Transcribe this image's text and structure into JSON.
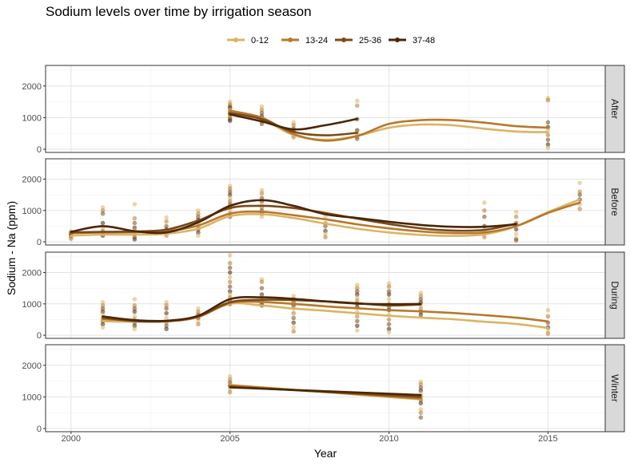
{
  "chart_data": {
    "type": "scatter",
    "title": "Sodium levels over time by irrigation season",
    "xlabel": "Year",
    "ylabel": "Sodium - Na (ppm)",
    "xlim": [
      1999.2,
      2016.8
    ],
    "ylim": [
      -100,
      2650
    ],
    "x_ticks": [
      2000,
      2005,
      2010,
      2015
    ],
    "y_ticks": [
      0,
      1000,
      2000
    ],
    "legend_position": "top",
    "grid": true,
    "series_colors": {
      "0-12": "#dbb463",
      "13-24": "#b8782a",
      "25-36": "#7a4a18",
      "37-48": "#4a2608"
    },
    "legend": [
      {
        "name": "0-12",
        "color": "#dbb463"
      },
      {
        "name": "13-24",
        "color": "#b8782a"
      },
      {
        "name": "25-36",
        "color": "#7a4a18"
      },
      {
        "name": "37-48",
        "color": "#4a2608"
      }
    ],
    "facets": [
      {
        "label": "After",
        "curves": [
          {
            "series": "0-12",
            "x": [
              2005,
              2006,
              2007,
              2008,
              2009,
              2010,
              2011,
              2012,
              2013,
              2014,
              2015
            ],
            "y": [
              1200,
              950,
              450,
              300,
              420,
              680,
              780,
              760,
              650,
              560,
              540
            ]
          },
          {
            "series": "13-24",
            "x": [
              2005,
              2006,
              2007,
              2008,
              2009,
              2010,
              2011,
              2012,
              2013,
              2014,
              2015
            ],
            "y": [
              1220,
              1000,
              480,
              270,
              420,
              800,
              920,
              920,
              840,
              730,
              680
            ]
          },
          {
            "series": "25-36",
            "x": [
              2005,
              2006,
              2007,
              2008,
              2009
            ],
            "y": [
              1150,
              950,
              550,
              440,
              520
            ]
          },
          {
            "series": "37-48",
            "x": [
              2005,
              2006,
              2007,
              2008,
              2009
            ],
            "y": [
              1100,
              880,
              630,
              760,
              960
            ]
          }
        ],
        "points": [
          {
            "x": 2005,
            "y": [
              1500,
              1420,
              1350,
              1300,
              1250,
              1200,
              1150,
              1100,
              1050,
              1000,
              950,
              900
            ]
          },
          {
            "x": 2006,
            "y": [
              1350,
              1250,
              1150,
              1050,
              950,
              880,
              800
            ]
          },
          {
            "x": 2007,
            "y": [
              850,
              760,
              650,
              550,
              450,
              380
            ]
          },
          {
            "x": 2009,
            "y": [
              1530,
              1380,
              950,
              600,
              500,
              400,
              330
            ]
          },
          {
            "x": 2015,
            "y": [
              1620,
              1550,
              850,
              700,
              600,
              450,
              300,
              150,
              50
            ]
          }
        ]
      },
      {
        "label": "Before",
        "curves": [
          {
            "series": "0-12",
            "x": [
              2000,
              2001,
              2002,
              2003,
              2004,
              2005,
              2006,
              2007,
              2008,
              2009,
              2010,
              2011,
              2012,
              2013,
              2014,
              2015,
              2016
            ],
            "y": [
              200,
              230,
              230,
              260,
              420,
              820,
              880,
              760,
              580,
              420,
              300,
              220,
              190,
              240,
              500,
              950,
              1350
            ]
          },
          {
            "series": "13-24",
            "x": [
              2000,
              2001,
              2002,
              2003,
              2004,
              2005,
              2006,
              2007,
              2008,
              2009,
              2010,
              2011,
              2012,
              2013,
              2014,
              2015,
              2016
            ],
            "y": [
              280,
              300,
              310,
              340,
              520,
              900,
              960,
              850,
              720,
              560,
              430,
              330,
              280,
              300,
              500,
              920,
              1250
            ]
          },
          {
            "series": "25-36",
            "x": [
              2000,
              2001,
              2002,
              2003,
              2004,
              2005,
              2006,
              2007,
              2008,
              2009,
              2010,
              2011,
              2012,
              2013,
              2014
            ],
            "y": [
              300,
              320,
              330,
              390,
              680,
              1080,
              1150,
              1080,
              920,
              740,
              570,
              430,
              360,
              380,
              580
            ]
          },
          {
            "series": "37-48",
            "x": [
              2000,
              2001,
              2002,
              2003,
              2004,
              2005,
              2006,
              2007,
              2008,
              2009,
              2010,
              2011,
              2012,
              2013,
              2014
            ],
            "y": [
              320,
              500,
              340,
              300,
              620,
              1150,
              1330,
              1150,
              880,
              760,
              640,
              540,
              480,
              480,
              560
            ]
          }
        ],
        "points": [
          {
            "x": 2000,
            "y": [
              340,
              300,
              250,
              200,
              150,
              100
            ]
          },
          {
            "x": 2001,
            "y": [
              1100,
              1000,
              900,
              600,
              450,
              350,
              300,
              200
            ]
          },
          {
            "x": 2002,
            "y": [
              1200,
              750,
              600,
              450,
              350,
              250,
              150,
              80
            ]
          },
          {
            "x": 2003,
            "y": [
              780,
              650,
              500,
              400,
              300,
              200
            ]
          },
          {
            "x": 2004,
            "y": [
              1000,
              900,
              800,
              700,
              600,
              500,
              400,
              300,
              200
            ]
          },
          {
            "x": 2005,
            "y": [
              1780,
              1700,
              1600,
              1500,
              1400,
              1300,
              1200,
              1100,
              1000,
              900,
              800
            ]
          },
          {
            "x": 2006,
            "y": [
              1650,
              1550,
              1400,
              1300,
              1200,
              1100,
              1000,
              900,
              800
            ]
          },
          {
            "x": 2008,
            "y": [
              800,
              600,
              500,
              350,
              250,
              150
            ]
          },
          {
            "x": 2013,
            "y": [
              1250,
              1000,
              800,
              500,
              300,
              150
            ]
          },
          {
            "x": 2014,
            "y": [
              950,
              800,
              600,
              400,
              250,
              100,
              50
            ]
          },
          {
            "x": 2016,
            "y": [
              1880,
              1600,
              1500,
              1350,
              1200,
              1050
            ]
          }
        ]
      },
      {
        "label": "During",
        "curves": [
          {
            "series": "0-12",
            "x": [
              2001,
              2002,
              2003,
              2004,
              2005,
              2006,
              2007,
              2008,
              2009,
              2010,
              2011,
              2012,
              2013,
              2014,
              2015
            ],
            "y": [
              450,
              430,
              460,
              600,
              1000,
              950,
              850,
              780,
              700,
              620,
              560,
              510,
              430,
              360,
              230
            ]
          },
          {
            "series": "13-24",
            "x": [
              2001,
              2002,
              2003,
              2004,
              2005,
              2006,
              2007,
              2008,
              2009,
              2010,
              2011,
              2012,
              2013,
              2014,
              2015
            ],
            "y": [
              520,
              460,
              440,
              580,
              1030,
              1060,
              1000,
              920,
              860,
              800,
              760,
              710,
              640,
              560,
              440
            ]
          },
          {
            "series": "25-36",
            "x": [
              2001,
              2002,
              2003,
              2004,
              2005,
              2006,
              2007,
              2008,
              2009,
              2010,
              2011
            ],
            "y": [
              560,
              450,
              450,
              600,
              1050,
              1130,
              1120,
              1080,
              1020,
              950,
              980
            ]
          },
          {
            "series": "37-48",
            "x": [
              2001,
              2002,
              2003,
              2004,
              2005,
              2006,
              2007,
              2008,
              2009,
              2010,
              2011
            ],
            "y": [
              600,
              480,
              460,
              620,
              1150,
              1210,
              1160,
              1080,
              1010,
              990,
              1000
            ]
          }
        ],
        "points": [
          {
            "x": 2001,
            "y": [
              1050,
              950,
              850,
              750,
              650,
              550,
              450,
              350,
              250
            ]
          },
          {
            "x": 2002,
            "y": [
              1150,
              950,
              850,
              750,
              600,
              500,
              400,
              300,
              200
            ]
          },
          {
            "x": 2003,
            "y": [
              1050,
              950,
              850,
              700,
              550,
              400,
              300,
              200
            ]
          },
          {
            "x": 2004,
            "y": [
              850,
              750,
              650,
              550,
              450,
              350
            ]
          },
          {
            "x": 2005,
            "y": [
              2550,
              2300,
              2150,
              2000,
              1850,
              1700,
              1550,
              1400,
              1300,
              1200,
              1100,
              1000
            ]
          },
          {
            "x": 2006,
            "y": [
              1780,
              1700,
              1500,
              1300,
              1200,
              1100,
              1000,
              950
            ]
          },
          {
            "x": 2007,
            "y": [
              1250,
              1150,
              1050,
              950,
              850,
              700,
              550,
              400,
              250,
              120
            ]
          },
          {
            "x": 2009,
            "y": [
              1600,
              1500,
              1400,
              1300,
              1200,
              1100,
              1000,
              900,
              750,
              600,
              450,
              300,
              150
            ]
          },
          {
            "x": 2010,
            "y": [
              1650,
              1550,
              1400,
              1300,
              1150,
              1000,
              900,
              800,
              650,
              500,
              350,
              200,
              100
            ]
          },
          {
            "x": 2011,
            "y": [
              1350,
              1250,
              1150,
              1050,
              950,
              850,
              750,
              650
            ]
          },
          {
            "x": 2015,
            "y": [
              800,
              600,
              400,
              250,
              150,
              50
            ]
          }
        ]
      },
      {
        "label": "Winter",
        "curves": [
          {
            "series": "0-12",
            "x": [
              2005,
              2011
            ],
            "y": [
              1380,
              920
            ]
          },
          {
            "series": "13-24",
            "x": [
              2005,
              2011
            ],
            "y": [
              1360,
              950
            ]
          },
          {
            "series": "25-36",
            "x": [
              2005,
              2011
            ],
            "y": [
              1320,
              1000
            ]
          },
          {
            "series": "37-48",
            "x": [
              2005,
              2011
            ],
            "y": [
              1300,
              1060
            ]
          }
        ],
        "points": [
          {
            "x": 2005,
            "y": [
              1650,
              1550,
              1450,
              1350,
              1250,
              1150
            ]
          },
          {
            "x": 2011,
            "y": [
              1480,
              1400,
              1300,
              1200,
              1100,
              1000,
              900,
              800,
              600,
              500,
              350
            ]
          }
        ]
      }
    ]
  }
}
